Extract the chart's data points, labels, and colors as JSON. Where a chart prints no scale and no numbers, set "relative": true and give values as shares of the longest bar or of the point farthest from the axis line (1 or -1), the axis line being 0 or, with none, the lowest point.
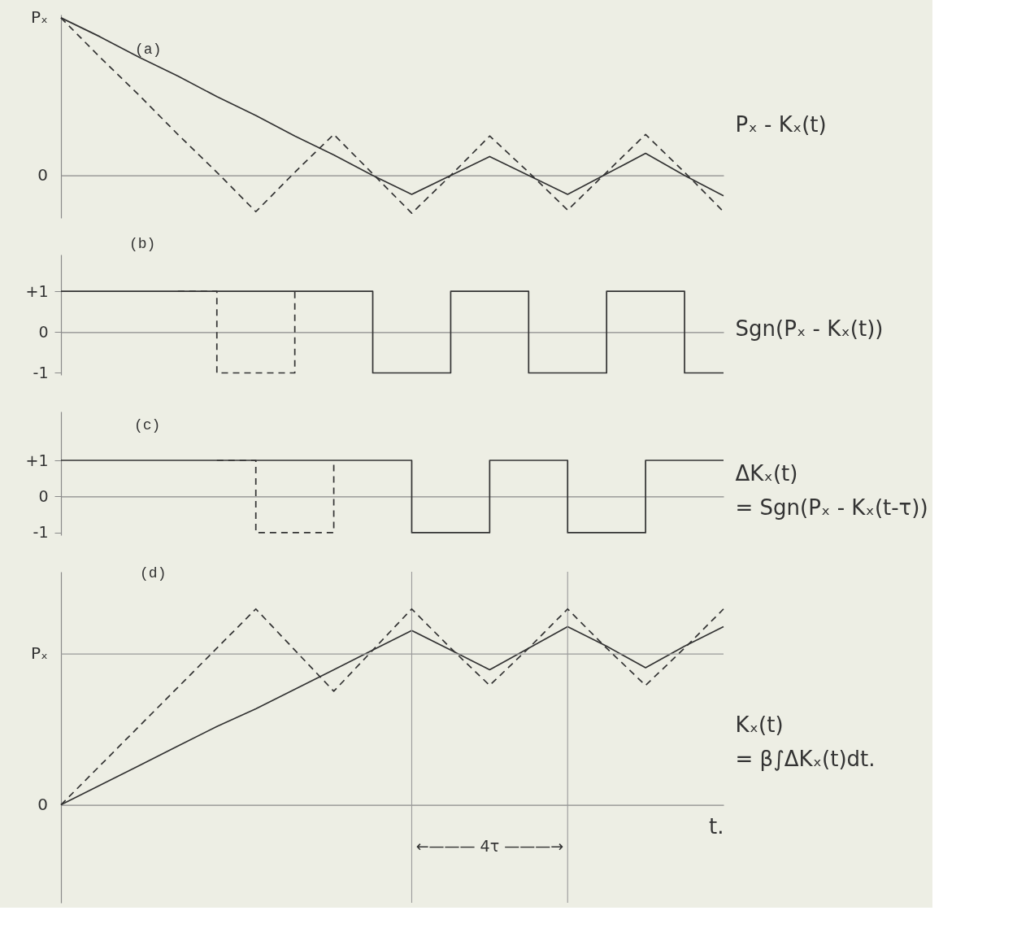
{
  "chart_data": [
    {
      "type": "line",
      "title": "(a)",
      "ylabel": "Pₓ - Kₓ(t)",
      "relative": true,
      "categories": [
        null,
        null,
        null,
        null,
        null,
        null,
        null,
        null,
        null,
        null,
        null,
        null,
        null,
        null,
        null,
        null,
        null,
        null
      ],
      "tick_labels": false,
      "annotations": [
        "Pₓ",
        "0"
      ],
      "series": [
        {
          "color": "#333333",
          "line_style": "solid",
          "values": [
            1,
            0.88,
            0.75,
            0.63,
            0.5,
            0.38,
            0.25,
            0.13,
            0.0,
            -0.12,
            0.0,
            0.12,
            0.0,
            -0.12,
            0.01,
            0.14,
            0.0,
            -0.13
          ]
        },
        {
          "color": "#333333",
          "line_style": "dashed",
          "values": [
            1,
            0.75,
            0.51,
            0.26,
            0.02,
            -0.23,
            0.02,
            0.26,
            0.01,
            -0.24,
            0.0,
            0.25,
            0.02,
            -0.22,
            0.02,
            0.26,
            0.02,
            -0.23
          ]
        }
      ]
    },
    {
      "type": "step",
      "title": "(b)",
      "ylabel": "Sgn(Pₓ - Kₓ(t))",
      "categories": [
        null,
        null,
        null,
        null,
        null,
        null,
        null,
        null,
        null,
        null,
        null,
        null,
        null,
        null,
        null,
        null,
        null,
        null
      ],
      "ylim": [
        -1.05,
        1.9
      ],
      "yticks": [
        {
          "value": 1,
          "label": "+1"
        },
        0,
        -1
      ],
      "tick_labels": "y",
      "series": [
        {
          "color": "#333333",
          "line_style": "solid",
          "values": [
            1,
            1,
            1,
            1,
            1,
            1,
            1,
            1,
            -1,
            -1,
            1,
            1,
            -1,
            -1,
            1,
            1,
            -1,
            -1
          ]
        },
        {
          "color": "#333333",
          "line_style": "dashed",
          "values": [
            null,
            null,
            null,
            1,
            -1,
            -1,
            1,
            null,
            null,
            null,
            null,
            null,
            null,
            null,
            null,
            null,
            null,
            null
          ]
        }
      ]
    },
    {
      "type": "step",
      "title": "(c)",
      "ylabel": "ΔKₓ(t)\n= Sgn(Pₓ - Kₓ(t-τ))",
      "categories": [
        null,
        null,
        null,
        null,
        null,
        null,
        null,
        null,
        null,
        null,
        null,
        null,
        null,
        null,
        null,
        null,
        null,
        null
      ],
      "ylim": [
        -1.07,
        2.35
      ],
      "yticks": [
        {
          "value": 1,
          "label": "+1"
        },
        0,
        -1
      ],
      "tick_labels": "y",
      "series": [
        {
          "color": "#333333",
          "line_style": "solid",
          "values": [
            1,
            1,
            1,
            1,
            1,
            1,
            1,
            1,
            1,
            -1,
            -1,
            1,
            1,
            -1,
            -1,
            1,
            1,
            1
          ]
        },
        {
          "color": "#333333",
          "line_style": "dashed",
          "values": [
            null,
            null,
            null,
            null,
            1,
            -1,
            -1,
            1,
            null,
            null,
            null,
            null,
            null,
            null,
            null,
            null,
            null,
            null
          ]
        }
      ]
    },
    {
      "type": "line",
      "title": "(d)",
      "xlabel": "t.",
      "ylabel": "Kₓ(t)\n= β∫ΔKₓ(t)dt.",
      "relative": true,
      "categories": [
        null,
        null,
        null,
        null,
        null,
        null,
        null,
        null,
        null,
        null,
        null,
        null,
        null,
        null,
        null,
        null,
        null,
        null
      ],
      "tick_labels": false,
      "ref_lines": [
        {
          "axis": "y",
          "value": 0.77,
          "label": "Pₓ",
          "color": "#9a9a9a"
        }
      ],
      "annotations": [
        "0",
        "←——— 4τ ———→"
      ],
      "series": [
        {
          "color": "#333333",
          "line_style": "solid",
          "values": [
            0,
            0.1,
            0.2,
            0.3,
            0.4,
            0.49,
            0.59,
            0.69,
            0.79,
            0.89,
            0.79,
            0.69,
            0.8,
            0.91,
            0.81,
            0.7,
            0.81,
            0.91
          ]
        },
        {
          "color": "#333333",
          "line_style": "dashed",
          "values": [
            0,
            0.2,
            0.4,
            0.6,
            0.8,
            1,
            0.79,
            0.58,
            0.79,
            1,
            0.8,
            0.61,
            0.8,
            1,
            0.8,
            0.61,
            0.8,
            1
          ]
        }
      ]
    }
  ]
}
